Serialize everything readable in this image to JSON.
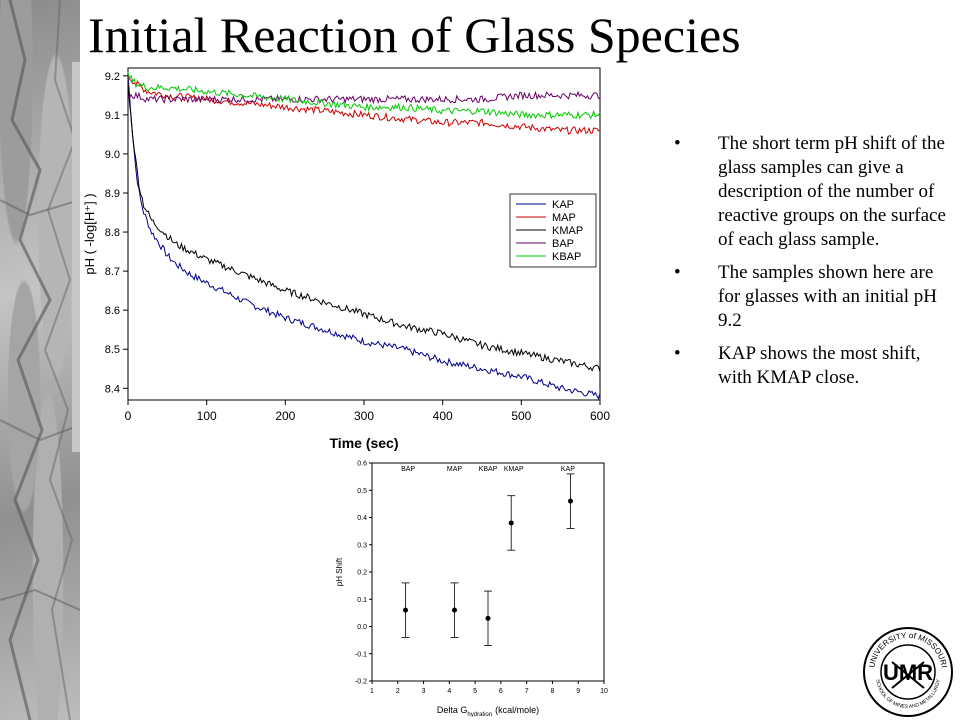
{
  "slide": {
    "title": "Initial Reaction of Glass Species",
    "bullets": [
      "The short term pH shift of the glass samples can give a description of the number of reactive groups on the surface of each glass sample.",
      "The samples shown here are for glasses with an initial pH 9.2",
      "KAP shows the most shift, with KMAP close."
    ],
    "bullet_glyph": "•",
    "seal": {
      "top_text": "UNIVERSITY of MISSOURI",
      "bottom_text": "SCHOOL OF MINES AND METALLURGY",
      "monogram": "UMR"
    }
  },
  "chart_data": [
    {
      "type": "line",
      "xlabel": "Time (sec)",
      "ylabel": "pH ( -log[H⁺] )",
      "xlim": [
        0,
        600
      ],
      "ylim": [
        8.37,
        9.22
      ],
      "xticks": [
        0,
        100,
        200,
        300,
        400,
        500,
        600
      ],
      "yticks": [
        8.4,
        8.5,
        8.6,
        8.7,
        8.8,
        8.9,
        9.0,
        9.1,
        9.2
      ],
      "grid": false,
      "legend": "right",
      "series": [
        {
          "name": "KAP",
          "color": "#00008b",
          "x": [
            0,
            5,
            10,
            15,
            20,
            30,
            40,
            50,
            60,
            80,
            100,
            150,
            200,
            250,
            300,
            350,
            400,
            450,
            500,
            550,
            600
          ],
          "y": [
            9.2,
            9.07,
            8.96,
            8.89,
            8.85,
            8.8,
            8.77,
            8.74,
            8.72,
            8.69,
            8.67,
            8.62,
            8.58,
            8.55,
            8.52,
            8.5,
            8.47,
            8.45,
            8.43,
            8.4,
            8.38
          ]
        },
        {
          "name": "MAP",
          "color": "#cc0000",
          "x": [
            0,
            10,
            25,
            50,
            100,
            150,
            200,
            250,
            300,
            350,
            400,
            450,
            500,
            550,
            600
          ],
          "y": [
            9.2,
            9.18,
            9.16,
            9.15,
            9.14,
            9.13,
            9.12,
            9.11,
            9.1,
            9.09,
            9.08,
            9.08,
            9.07,
            9.06,
            9.06
          ]
        },
        {
          "name": "KMAP",
          "color": "#000000",
          "x": [
            0,
            5,
            10,
            15,
            20,
            30,
            40,
            50,
            60,
            80,
            100,
            150,
            200,
            250,
            300,
            350,
            400,
            450,
            500,
            550,
            600
          ],
          "y": [
            9.18,
            9.07,
            8.98,
            8.91,
            8.87,
            8.83,
            8.81,
            8.79,
            8.77,
            8.75,
            8.73,
            8.69,
            8.65,
            8.62,
            8.59,
            8.56,
            8.54,
            8.51,
            8.49,
            8.47,
            8.45
          ]
        },
        {
          "name": "BAP",
          "color": "#6b006b",
          "x": [
            0,
            10,
            25,
            50,
            100,
            150,
            200,
            250,
            300,
            350,
            400,
            450,
            500,
            550,
            600
          ],
          "y": [
            9.15,
            9.15,
            9.14,
            9.14,
            9.14,
            9.14,
            9.14,
            9.14,
            9.14,
            9.14,
            9.14,
            9.14,
            9.15,
            9.15,
            9.15
          ]
        },
        {
          "name": "KBAP",
          "color": "#00cc00",
          "x": [
            0,
            10,
            25,
            50,
            100,
            150,
            200,
            250,
            300,
            350,
            400,
            450,
            500,
            550,
            600
          ],
          "y": [
            9.2,
            9.18,
            9.17,
            9.17,
            9.16,
            9.15,
            9.14,
            9.13,
            9.12,
            9.12,
            9.11,
            9.11,
            9.1,
            9.1,
            9.1
          ]
        }
      ]
    },
    {
      "type": "scatter",
      "xlabel": "Delta G",
      "xlabel_subscript": "hydration",
      "xlabel_suffix": "(kcal/mole)",
      "ylabel": "pH Shift",
      "xlim": [
        1,
        10
      ],
      "ylim": [
        -0.2,
        0.6
      ],
      "xticks": [
        1,
        2,
        3,
        4,
        5,
        6,
        7,
        8,
        9,
        10
      ],
      "yticks": [
        -0.2,
        -0.1,
        0.0,
        0.1,
        0.2,
        0.3,
        0.4,
        0.5,
        0.6
      ],
      "ytick_labels": [
        "-0.2",
        "-0.1",
        "0.0",
        "0.1",
        "0.2",
        "0.3",
        "0.4",
        "0.5",
        "0.6"
      ],
      "grid": false,
      "points": [
        {
          "label": "BAP",
          "x": 2.3,
          "y": 0.06,
          "err": 0.1,
          "label_x": 2.4
        },
        {
          "label": "MAP",
          "x": 4.2,
          "y": 0.06,
          "err": 0.1,
          "label_x": 4.2
        },
        {
          "label": "KBAP",
          "x": 5.5,
          "y": 0.03,
          "err": 0.1,
          "label_x": 5.5
        },
        {
          "label": "KMAP",
          "x": 6.4,
          "y": 0.38,
          "err": 0.1,
          "label_x": 6.5
        },
        {
          "label": "KAP",
          "x": 8.7,
          "y": 0.46,
          "err": 0.1,
          "label_x": 8.6
        }
      ]
    }
  ]
}
